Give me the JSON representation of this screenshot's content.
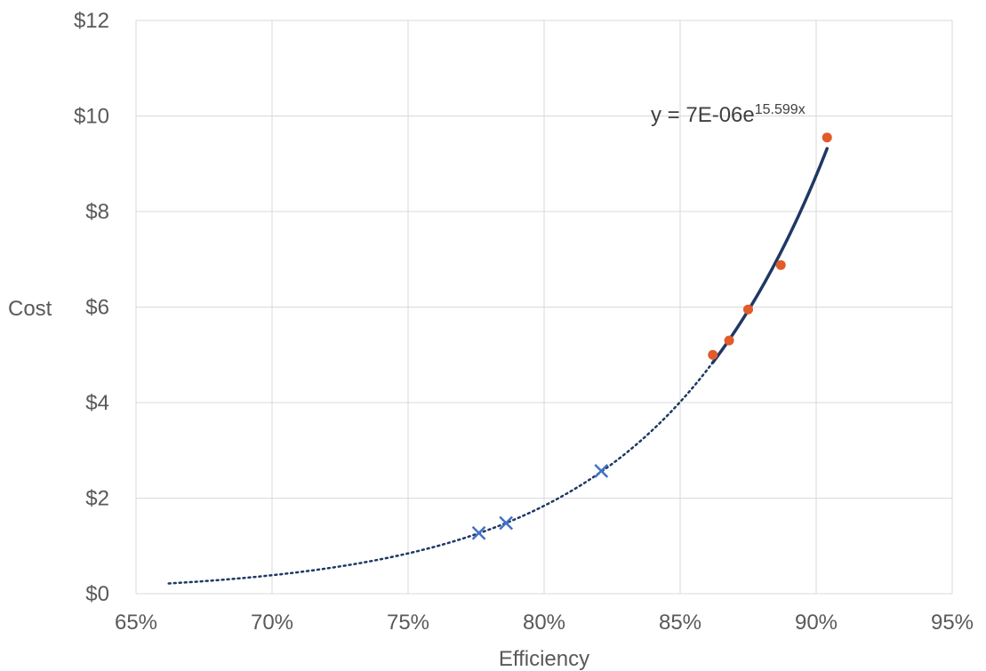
{
  "chart_data": {
    "type": "scatter",
    "title": "",
    "xlabel": "Efficiency",
    "ylabel": "Cost",
    "xlim": [
      0.65,
      0.95
    ],
    "ylim": [
      0,
      12
    ],
    "x_ticks": [
      0.65,
      0.7,
      0.75,
      0.8,
      0.85,
      0.9,
      0.95
    ],
    "x_tick_labels": [
      "65%",
      "70%",
      "75%",
      "80%",
      "85%",
      "90%",
      "95%"
    ],
    "y_ticks": [
      0,
      2,
      4,
      6,
      8,
      10,
      12
    ],
    "y_tick_labels": [
      "$0",
      "$2",
      "$4",
      "$6",
      "$8",
      "$10",
      "$12"
    ],
    "grid": true,
    "series": [
      {
        "marker": "x",
        "color": "#4472c4",
        "x": [
          0.776,
          0.786,
          0.821
        ],
        "y": [
          1.27,
          1.48,
          2.57
        ]
      },
      {
        "marker": "circle",
        "color": "#e15b2b",
        "x": [
          0.862,
          0.868,
          0.875,
          0.887,
          0.904
        ],
        "y": [
          5.0,
          5.3,
          5.95,
          6.88,
          9.55
        ]
      }
    ],
    "trendline": {
      "equation_base": "y = 7E-06e",
      "equation_exponent": "15.599x",
      "coefficient": 7e-06,
      "rate": 15.599,
      "solid_range": [
        0.862,
        0.904
      ],
      "dotted_range": [
        0.662,
        0.862
      ],
      "solid_color": "#1f3864",
      "dotted_color": "#1f3864"
    }
  }
}
